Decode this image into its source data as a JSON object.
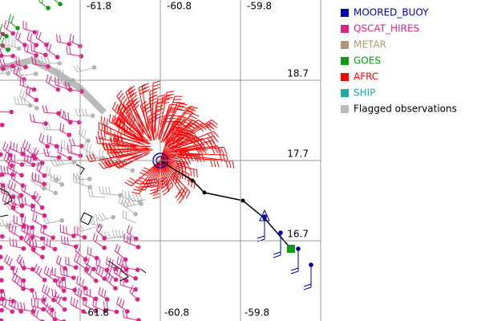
{
  "chart_data": {
    "type": "map",
    "xlim": [
      -62.8,
      -58.8
    ],
    "ylim": [
      15.7,
      19.7
    ],
    "xticks": [
      -61.8,
      -60.8,
      -59.8
    ],
    "yticks": [
      18.7,
      17.7,
      16.7
    ],
    "grid": true,
    "series": [
      {
        "name": "MOORED_BUOY",
        "color": "#0000aa",
        "label_color": "#0000aa"
      },
      {
        "name": "QSCAT_HIRES",
        "color": "#dd2288",
        "label_color": "#dd2288"
      },
      {
        "name": "METAR",
        "color": "#aa9977",
        "label_color": "#aa9977"
      },
      {
        "name": "GOES",
        "color": "#119911",
        "label_color": "#119911"
      },
      {
        "name": "AFRC",
        "color": "#ff0000",
        "label_color": "#ff0000"
      },
      {
        "name": "SHIP",
        "color": "#22aaaa",
        "label_color": "#22aaaa"
      },
      {
        "name": "Flagged observations",
        "color": "#bbbbbb",
        "label_color": "#000000"
      }
    ]
  }
}
